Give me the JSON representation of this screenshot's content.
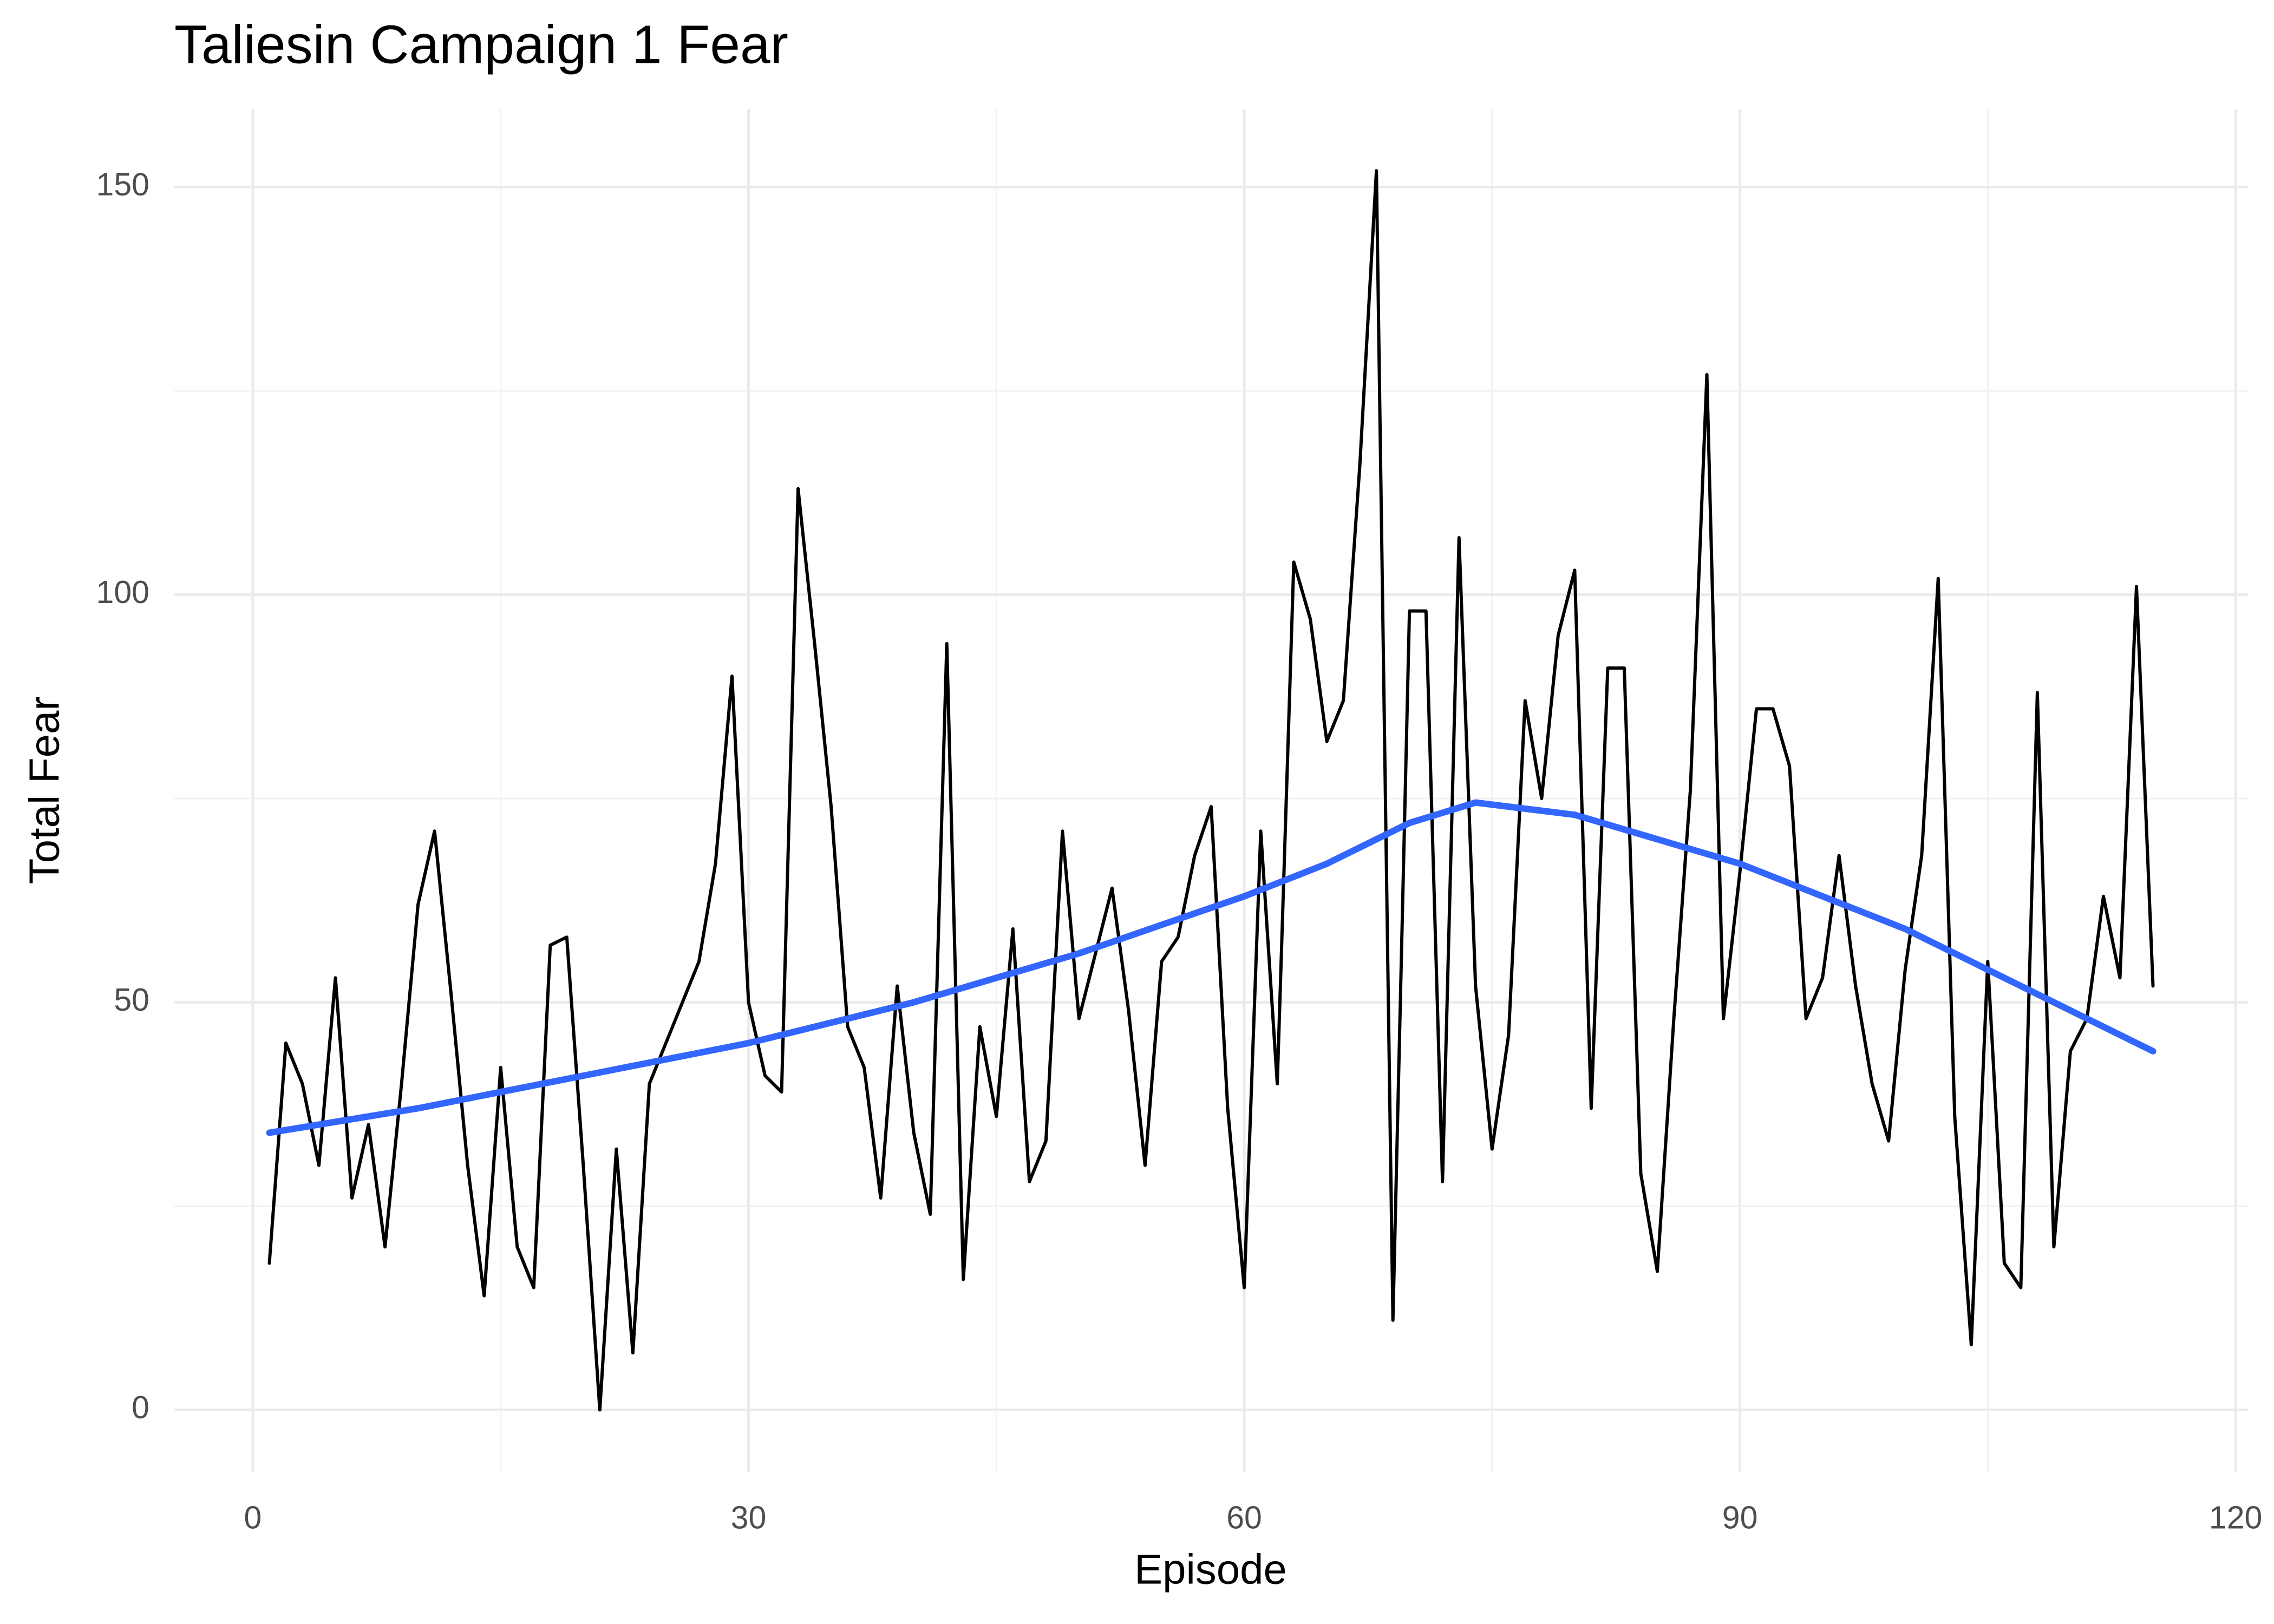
{
  "chart_data": {
    "type": "line",
    "title": "Taliesin Campaign 1 Fear",
    "x_label": "Episode",
    "y_label": "Total Fear",
    "series": [
      {
        "color": "#000000",
        "x": [
          1,
          2,
          3,
          4,
          5,
          6,
          7,
          8,
          9,
          10,
          11,
          12,
          13,
          14,
          15,
          16,
          17,
          18,
          19,
          20,
          21,
          22,
          23,
          24,
          25,
          26,
          27,
          28,
          29,
          30,
          31,
          32,
          33,
          34,
          35,
          36,
          37,
          38,
          39,
          40,
          41,
          42,
          43,
          44,
          45,
          46,
          47,
          48,
          49,
          50,
          51,
          52,
          53,
          54,
          55,
          56,
          57,
          58,
          59,
          60,
          61,
          62,
          63,
          64,
          65,
          66,
          67,
          68,
          69,
          70,
          71,
          72,
          73,
          74,
          75,
          76,
          77,
          78,
          79,
          80,
          81,
          82,
          83,
          84,
          85,
          86,
          87,
          88,
          89,
          90,
          91,
          92,
          93,
          94,
          95,
          96,
          97,
          98,
          99,
          100,
          101,
          102,
          103,
          104,
          105,
          106,
          107,
          108,
          109,
          110,
          111,
          112,
          113,
          114,
          115
        ],
        "values": [
          18,
          45,
          40,
          30,
          53,
          26,
          35,
          20,
          40,
          62,
          71,
          51,
          30,
          14,
          42,
          20,
          15,
          57,
          58,
          30,
          0,
          32,
          7,
          40,
          45,
          50,
          55,
          67,
          90,
          50,
          41,
          39,
          113,
          94,
          74,
          47,
          42,
          26,
          52,
          34,
          24,
          94,
          16,
          47,
          36,
          59,
          28,
          33,
          71,
          48,
          56,
          64,
          49,
          30,
          55,
          58,
          68,
          74,
          37,
          15,
          71,
          40,
          104,
          97,
          82,
          87,
          116,
          152,
          11,
          98,
          98,
          28,
          107,
          52,
          32,
          46,
          87,
          75,
          95,
          103,
          37,
          91,
          91,
          29,
          17,
          48,
          76,
          127,
          48,
          66,
          86,
          86,
          79,
          48,
          53,
          68,
          52,
          40,
          33,
          54,
          68,
          102,
          36,
          8,
          55,
          18,
          15,
          88,
          20,
          44,
          48,
          63,
          53,
          101,
          52
        ]
      },
      {
        "color": "#3366ff",
        "smooth": true,
        "x": [
          1,
          10,
          20,
          30,
          40,
          50,
          60,
          65,
          70,
          74,
          80,
          90,
          100,
          110,
          115
        ],
        "values": [
          34,
          37,
          41,
          45,
          50,
          56,
          63,
          67,
          72,
          74.5,
          73,
          67,
          59,
          49,
          44
        ]
      }
    ],
    "xlim": [
      -4.75,
      120.75
    ],
    "ylim": [
      -7.6,
      159.6
    ],
    "xticks": [
      0,
      30,
      60,
      90,
      120
    ],
    "yticks": [
      0,
      50,
      100,
      150
    ],
    "grid": true,
    "minor_grid": true
  }
}
